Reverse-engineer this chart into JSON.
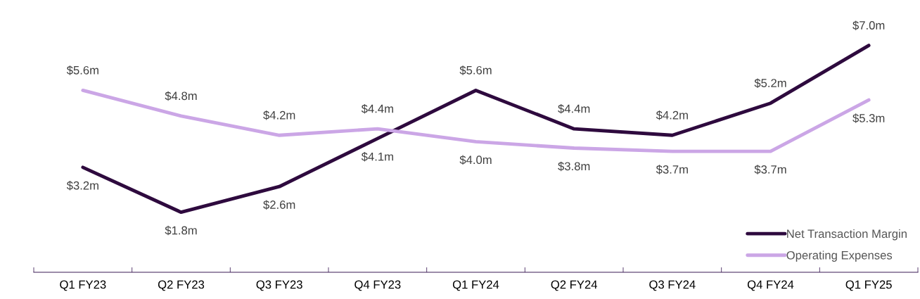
{
  "chart_data": {
    "type": "line",
    "categories": [
      "Q1 FY23",
      "Q2 FY23",
      "Q3 FY23",
      "Q4 FY23",
      "Q1 FY24",
      "Q2 FY24",
      "Q3 FY24",
      "Q4 FY24",
      "Q1 FY25"
    ],
    "series": [
      {
        "name": "Net Transaction Margin",
        "color": "#2e0a3e",
        "values": [
          3.2,
          1.8,
          2.6,
          4.1,
          5.6,
          4.4,
          4.2,
          5.2,
          7.0
        ],
        "value_labels": [
          "$3.2m",
          "$1.8m",
          "$2.6m",
          "$4.1m",
          "$5.6m",
          "$4.4m",
          "$4.2m",
          "$5.2m",
          "$7.0m"
        ]
      },
      {
        "name": "Operating Expenses",
        "color": "#cba6e6",
        "values": [
          5.6,
          4.8,
          4.2,
          4.4,
          4.0,
          3.8,
          3.7,
          3.7,
          5.3
        ],
        "value_labels": [
          "$5.6m",
          "$4.8m",
          "$4.2m",
          "$4.4m",
          "$4.0m",
          "$3.8m",
          "$3.7m",
          "$3.7m",
          "$5.3m"
        ]
      }
    ],
    "tick_labels": "x",
    "grid": false,
    "legend": "bottom right",
    "marker": "none",
    "line_style": "solid"
  }
}
